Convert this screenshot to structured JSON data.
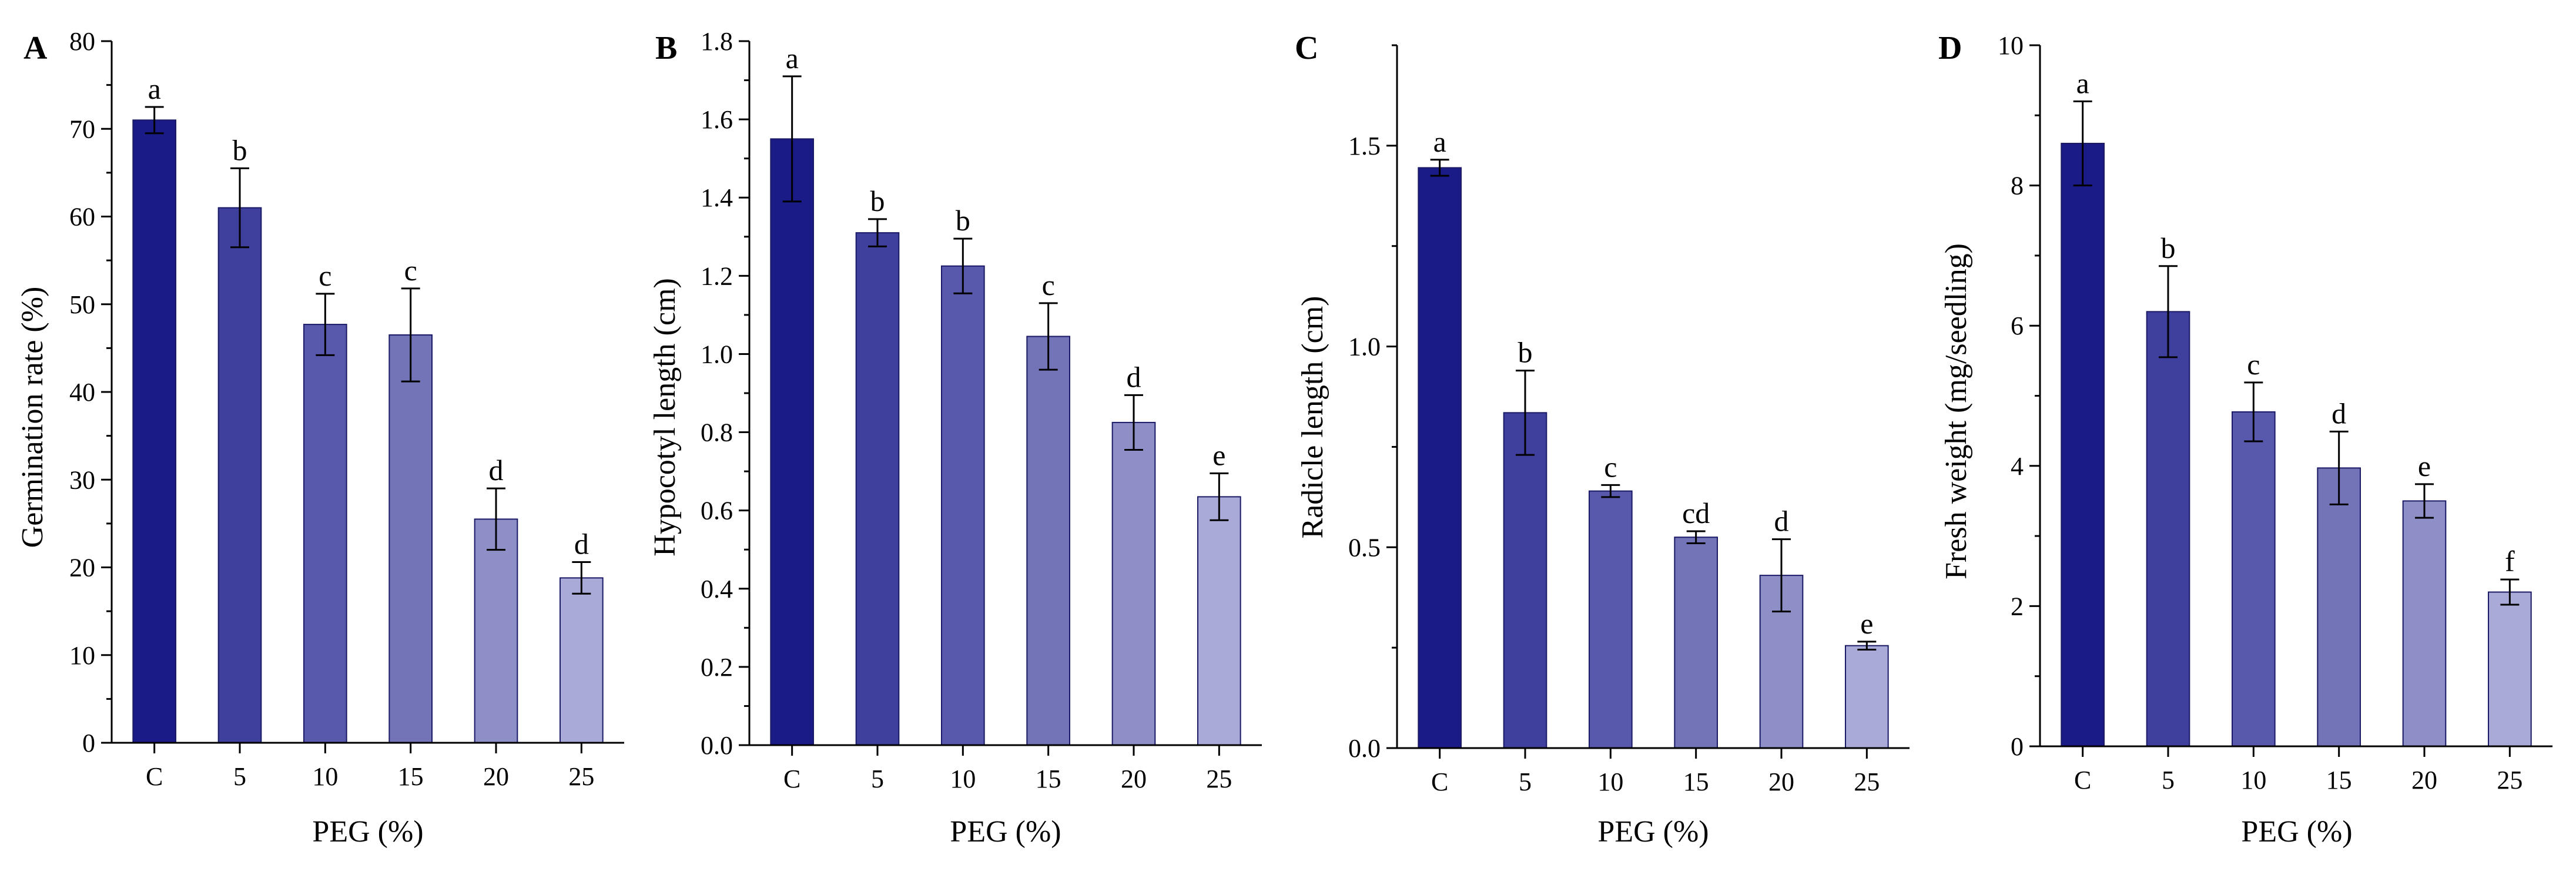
{
  "colors": {
    "bars": [
      "#1b1b87",
      "#3f3f9e",
      "#5858ac",
      "#7373b8",
      "#8f8fc8",
      "#aaaad8"
    ],
    "axis": "#000000"
  },
  "chart_data": [
    {
      "type": "bar",
      "panel": "A",
      "xlabel": "PEG (%)",
      "ylabel": "Germination rate (%)",
      "categories": [
        "C",
        "5",
        "10",
        "15",
        "20",
        "25"
      ],
      "values": [
        71.0,
        61.0,
        47.7,
        46.5,
        25.5,
        18.8
      ],
      "errors": [
        1.5,
        4.5,
        3.5,
        5.3,
        3.5,
        1.8
      ],
      "labels": [
        "a",
        "b",
        "c",
        "c",
        "d",
        "d"
      ],
      "ylim": [
        0,
        80
      ],
      "yticks": [
        0,
        10,
        20,
        30,
        40,
        50,
        60,
        70,
        80
      ],
      "ytick_labels": [
        "0",
        "10",
        "20",
        "30",
        "40",
        "50",
        "60",
        "70",
        "80"
      ]
    },
    {
      "type": "bar",
      "panel": "B",
      "xlabel": "PEG (%)",
      "ylabel": "Hypocotyl length (cm)",
      "categories": [
        "C",
        "5",
        "10",
        "15",
        "20",
        "25"
      ],
      "values": [
        1.55,
        1.31,
        1.225,
        1.045,
        0.825,
        0.635
      ],
      "errors": [
        0.16,
        0.035,
        0.07,
        0.085,
        0.07,
        0.06
      ],
      "labels": [
        "a",
        "b",
        "b",
        "c",
        "d",
        "e"
      ],
      "ylim": [
        0,
        1.8
      ],
      "yticks": [
        0,
        0.2,
        0.4,
        0.6,
        0.8,
        1.0,
        1.2,
        1.4,
        1.6,
        1.8
      ],
      "ytick_labels": [
        "0.0",
        "0.2",
        "0.4",
        "0.6",
        "0.8",
        "1.0",
        "1.2",
        "1.4",
        "1.6",
        "1.8"
      ]
    },
    {
      "type": "bar",
      "panel": "C",
      "xlabel": "PEG (%)",
      "ylabel": "Radicle length (cm)",
      "categories": [
        "C",
        "5",
        "10",
        "15",
        "20",
        "25"
      ],
      "values": [
        1.445,
        0.835,
        0.64,
        0.525,
        0.43,
        0.255
      ],
      "errors": [
        0.02,
        0.105,
        0.015,
        0.015,
        0.09,
        0.01
      ],
      "labels": [
        "a",
        "b",
        "c",
        "cd",
        "d",
        "e"
      ],
      "ylim": [
        0,
        1.75
      ],
      "yticks": [
        0,
        0.5,
        1.0,
        1.5
      ],
      "ytick_labels": [
        "0.0",
        "0.5",
        "1.0",
        "1.5"
      ]
    },
    {
      "type": "bar",
      "panel": "D",
      "xlabel": "PEG (%)",
      "ylabel": "Fresh weight (mg/seedling)",
      "categories": [
        "C",
        "5",
        "10",
        "15",
        "20",
        "25"
      ],
      "values": [
        8.6,
        6.2,
        4.77,
        3.97,
        3.5,
        2.2
      ],
      "errors": [
        0.6,
        0.65,
        0.42,
        0.52,
        0.24,
        0.18
      ],
      "labels": [
        "a",
        "b",
        "c",
        "d",
        "e",
        "f"
      ],
      "ylim": [
        0,
        10
      ],
      "yticks": [
        0,
        2,
        4,
        6,
        8,
        10
      ],
      "ytick_labels": [
        "0",
        "2",
        "4",
        "6",
        "8",
        "10"
      ]
    }
  ]
}
